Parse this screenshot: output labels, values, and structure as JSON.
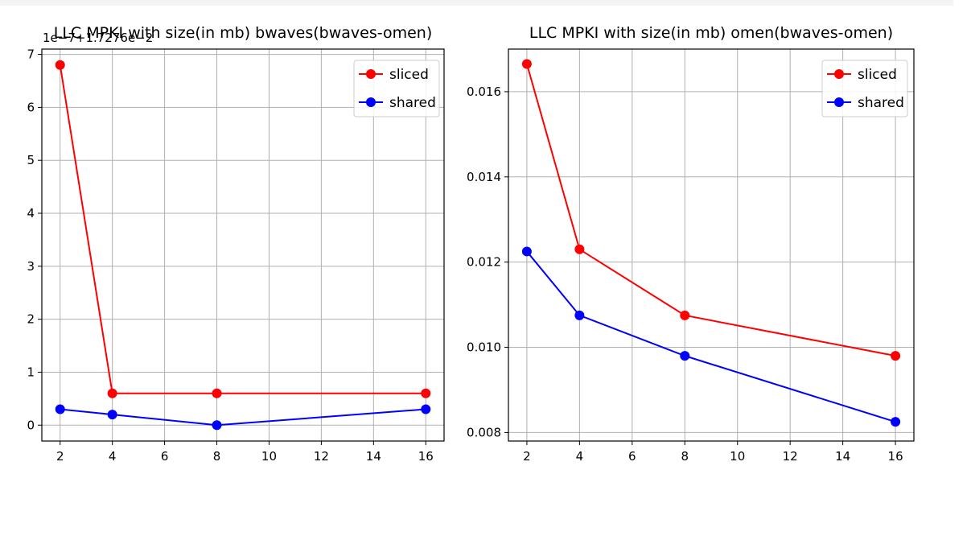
{
  "chart_data": [
    {
      "type": "line",
      "title": "LLC MPKI with size(in mb) bwaves(bwaves-omen)",
      "offset_text": "1e−7+1.7276e−2",
      "xlabel": "",
      "ylabel": "",
      "x": [
        2,
        4,
        8,
        16
      ],
      "xlim": [
        1.3,
        16.7
      ],
      "ylim": [
        -0.3,
        7.1
      ],
      "xticks": [
        2,
        4,
        6,
        8,
        10,
        12,
        14,
        16
      ],
      "yticks": [
        0,
        1,
        2,
        3,
        4,
        5,
        6,
        7
      ],
      "xtick_labels": [
        "2",
        "4",
        "6",
        "8",
        "10",
        "12",
        "14",
        "16"
      ],
      "ytick_labels": [
        "0",
        "1",
        "2",
        "3",
        "4",
        "5",
        "6",
        "7"
      ],
      "grid": true,
      "legend_position": "top-right",
      "series": [
        {
          "name": "sliced",
          "color": "#ff0000",
          "values": [
            6.8,
            0.6,
            0.6,
            0.6
          ]
        },
        {
          "name": "shared",
          "color": "#0000ff",
          "values": [
            0.3,
            0.2,
            0.0,
            0.3
          ]
        }
      ]
    },
    {
      "type": "line",
      "title": "LLC MPKI with size(in mb) omen(bwaves-omen)",
      "xlabel": "",
      "ylabel": "",
      "x": [
        2,
        4,
        8,
        16
      ],
      "xlim": [
        1.3,
        16.7
      ],
      "ylim": [
        0.0078,
        0.017
      ],
      "xticks": [
        2,
        4,
        6,
        8,
        10,
        12,
        14,
        16
      ],
      "yticks": [
        0.008,
        0.01,
        0.012,
        0.014,
        0.016
      ],
      "xtick_labels": [
        "2",
        "4",
        "6",
        "8",
        "10",
        "12",
        "14",
        "16"
      ],
      "ytick_labels": [
        "0.008",
        "0.010",
        "0.012",
        "0.014",
        "0.016"
      ],
      "grid": true,
      "legend_position": "top-right",
      "series": [
        {
          "name": "sliced",
          "color": "#ff0000",
          "values": [
            0.01665,
            0.0123,
            0.01075,
            0.0098
          ]
        },
        {
          "name": "shared",
          "color": "#0000ff",
          "values": [
            0.01225,
            0.01075,
            0.0098,
            0.00825
          ]
        }
      ]
    }
  ]
}
